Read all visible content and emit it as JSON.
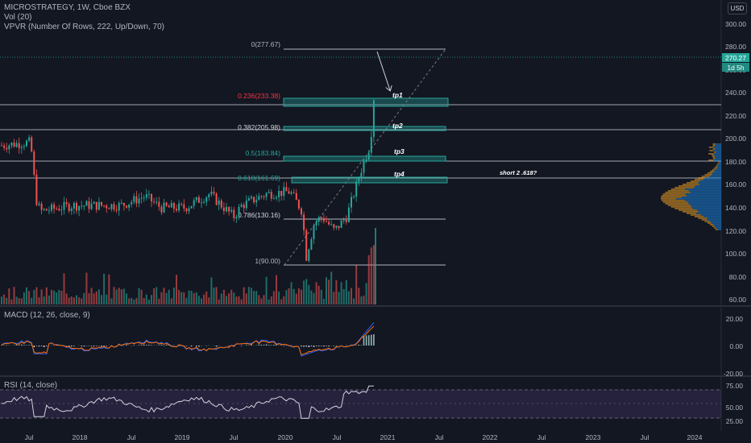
{
  "header": {
    "title": "MICROSTRATEGY, 1W, Cboe BZX",
    "volume": "Vol (20)",
    "vpvr": "VPVR (Number Of Rows, 222, Up/Down, 70)",
    "currency": "USD"
  },
  "price_axis": {
    "labels": [
      "300.00",
      "280.00",
      "260.00",
      "240.00",
      "220.00",
      "200.00",
      "180.00",
      "160.00",
      "140.00",
      "120.00",
      "100.00",
      "80.00",
      "60.00"
    ],
    "last_price": "270.27",
    "countdown": "1d 5h"
  },
  "fib": {
    "levels": [
      {
        "label": "0(277.67)",
        "color": "#b2b5be"
      },
      {
        "label": "0.236(233.38)",
        "color": "#f23645"
      },
      {
        "label": "0.382(205.98)",
        "color": "#d1d4dc"
      },
      {
        "label": "0.5(183.84)",
        "color": "#26a69a"
      },
      {
        "label": "0.618(161.69)",
        "color": "#26a69a"
      },
      {
        "label": "0.786(130.16)",
        "color": "#d1d4dc"
      },
      {
        "label": "1(90.00)",
        "color": "#b2b5be"
      }
    ],
    "tp_labels": [
      "tp1",
      "tp2",
      "tp3",
      "tp4"
    ],
    "note": "short 2 .618?"
  },
  "macd": {
    "label": "MACD (12, 26, close, 9)",
    "axis_labels": [
      "20.00",
      "0.00",
      "-20.00"
    ]
  },
  "rsi": {
    "label": "RSI (14, close)",
    "axis_labels": [
      "75.00",
      "50.00",
      "25.00"
    ]
  },
  "time_axis": {
    "labels": [
      "Jul",
      "2018",
      "Jul",
      "2019",
      "Jul",
      "2020",
      "Jul",
      "2021",
      "Jul",
      "2022",
      "Jul",
      "2023",
      "Jul",
      "2024"
    ]
  },
  "colors": {
    "up": "#26a69a",
    "down": "#ef5350",
    "background": "#131722",
    "rsi_band": "#7e57c2",
    "macd": "#2962ff",
    "signal": "#ff6d00",
    "vpvr_up": "#1e88e5",
    "vpvr_down": "#f9a825"
  }
}
